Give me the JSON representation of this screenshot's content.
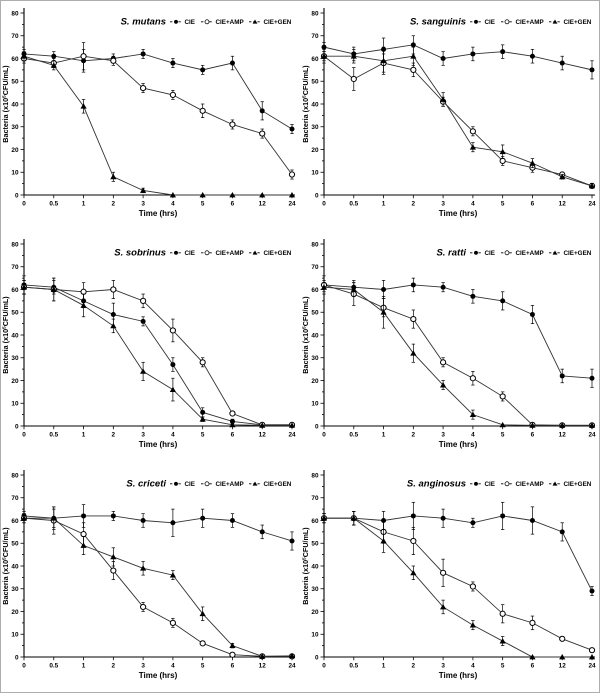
{
  "figure": {
    "background": "#ffffff",
    "border_color": "#adadad",
    "series_color": "#000000",
    "line_color": "#333333"
  },
  "chart_data": [
    {
      "type": "line",
      "title": "S. mutans",
      "xlabel": "Time (hrs)",
      "ylabel_prefix": "Bacteria (x10",
      "ylabel_exponent": "5",
      "ylabel_suffix": "CFU/mL)",
      "categories": [
        "0",
        "0.5",
        "1",
        "2",
        "3",
        "4",
        "5",
        "6",
        "12",
        "24"
      ],
      "ylim": [
        0,
        80
      ],
      "yticks": [
        0,
        10,
        20,
        30,
        40,
        50,
        60,
        70,
        80
      ],
      "grid": false,
      "error_bars": true,
      "legend_position": "top-right",
      "series": [
        {
          "name": "CIE",
          "marker": "filled-circle",
          "color": "#000000",
          "values": [
            62,
            61,
            59,
            60,
            62,
            58,
            55,
            58,
            37,
            29
          ],
          "errors": [
            2,
            2,
            5,
            2,
            2,
            2,
            2,
            3,
            4,
            2
          ]
        },
        {
          "name": "CIE+AMP",
          "marker": "open-circle",
          "color": "#000000",
          "values": [
            60,
            58,
            61,
            59,
            47,
            44,
            37,
            31,
            27,
            9
          ],
          "errors": [
            2,
            2,
            6,
            2,
            2,
            2,
            3,
            2,
            2,
            2
          ]
        },
        {
          "name": "CIE+GEN",
          "marker": "filled-triangle",
          "color": "#000000",
          "values": [
            61,
            57,
            39,
            8,
            2,
            0,
            0,
            0,
            0,
            0
          ],
          "errors": [
            2,
            2,
            3,
            2,
            1,
            0,
            0,
            0,
            0,
            0
          ]
        }
      ]
    },
    {
      "type": "line",
      "title": "S. sanguinis",
      "xlabel": "Time (hrs)",
      "ylabel_prefix": "Bacteria (x10",
      "ylabel_exponent": "5",
      "ylabel_suffix": "CFU/mL)",
      "categories": [
        "0",
        "0.5",
        "1",
        "2",
        "3",
        "4",
        "5",
        "6",
        "12",
        "24"
      ],
      "ylim": [
        0,
        80
      ],
      "yticks": [
        0,
        10,
        20,
        30,
        40,
        50,
        60,
        70,
        80
      ],
      "grid": false,
      "error_bars": true,
      "legend_position": "top-right",
      "series": [
        {
          "name": "CIE",
          "marker": "filled-circle",
          "color": "#000000",
          "values": [
            65,
            62,
            64,
            66,
            60,
            62,
            63,
            61,
            58,
            55
          ],
          "errors": [
            2,
            3,
            5,
            4,
            3,
            3,
            3,
            3,
            3,
            4
          ]
        },
        {
          "name": "CIE+AMP",
          "marker": "open-circle",
          "color": "#000000",
          "values": [
            61,
            51,
            58,
            55,
            41,
            28,
            15,
            12,
            9,
            4
          ],
          "errors": [
            3,
            5,
            4,
            3,
            2,
            2,
            2,
            2,
            1,
            1
          ]
        },
        {
          "name": "CIE+GEN",
          "marker": "filled-triangle",
          "color": "#000000",
          "values": [
            61,
            61,
            59,
            61,
            42,
            21,
            19,
            14,
            8,
            4
          ],
          "errors": [
            2,
            3,
            6,
            4,
            3,
            2,
            3,
            2,
            1,
            1
          ]
        }
      ]
    },
    {
      "type": "line",
      "title": "S. sobrinus",
      "xlabel": "Time (hrs)",
      "ylabel_prefix": "Bacteria (x10",
      "ylabel_exponent": "5",
      "ylabel_suffix": "CFU/mL)",
      "categories": [
        "0",
        "0.5",
        "1",
        "2",
        "3",
        "4",
        "5",
        "6",
        "12",
        "24"
      ],
      "ylim": [
        0,
        80
      ],
      "yticks": [
        0,
        10,
        20,
        30,
        40,
        50,
        60,
        70,
        80
      ],
      "grid": false,
      "error_bars": true,
      "legend_position": "top-right",
      "series": [
        {
          "name": "CIE",
          "marker": "filled-circle",
          "color": "#000000",
          "values": [
            62,
            61,
            55,
            49,
            46,
            27,
            6,
            2,
            0.5,
            0.5
          ],
          "errors": [
            4,
            3,
            3,
            5,
            2,
            3,
            2,
            1,
            0,
            0
          ]
        },
        {
          "name": "CIE+AMP",
          "marker": "open-circle",
          "color": "#000000",
          "values": [
            61,
            60,
            59,
            60,
            55,
            42,
            28,
            5.5,
            0.5,
            0.5
          ],
          "errors": [
            3,
            5,
            4,
            4,
            3,
            5,
            2,
            1,
            0,
            0
          ]
        },
        {
          "name": "CIE+GEN",
          "marker": "filled-triangle",
          "color": "#000000",
          "values": [
            61,
            60,
            53,
            44,
            24,
            16,
            3,
            0.5,
            0.3,
            0.3
          ],
          "errors": [
            3,
            5,
            5,
            3,
            4,
            5,
            1,
            0,
            0,
            0
          ]
        }
      ]
    },
    {
      "type": "line",
      "title": "S. ratti",
      "xlabel": "Time (hrs)",
      "ylabel_prefix": "Bacteria (x10",
      "ylabel_exponent": "5",
      "ylabel_suffix": "CFU/mL)",
      "categories": [
        "0",
        "0.5",
        "1",
        "2",
        "3",
        "4",
        "5",
        "6",
        "12",
        "24"
      ],
      "ylim": [
        0,
        80
      ],
      "yticks": [
        0,
        10,
        20,
        30,
        40,
        50,
        60,
        70,
        80
      ],
      "grid": false,
      "error_bars": true,
      "legend_position": "top-right",
      "series": [
        {
          "name": "CIE",
          "marker": "filled-circle",
          "color": "#000000",
          "values": [
            62,
            61,
            60,
            62,
            61,
            57,
            55,
            49,
            22,
            21
          ],
          "errors": [
            4,
            3,
            4,
            3,
            2,
            3,
            4,
            4,
            3,
            4
          ]
        },
        {
          "name": "CIE+AMP",
          "marker": "open-circle",
          "color": "#000000",
          "values": [
            62,
            58,
            52,
            47,
            28,
            21,
            13,
            0.5,
            0.3,
            0.3
          ],
          "errors": [
            2,
            5,
            4,
            4,
            2,
            3,
            2,
            0,
            0,
            0
          ]
        },
        {
          "name": "CIE+GEN",
          "marker": "filled-triangle",
          "color": "#000000",
          "values": [
            61,
            60,
            50,
            32,
            18,
            5,
            0.5,
            0.3,
            0.3,
            0.3
          ],
          "errors": [
            2,
            3,
            7,
            4,
            2,
            2,
            0,
            0,
            0,
            0
          ]
        }
      ]
    },
    {
      "type": "line",
      "title": "S. criceti",
      "xlabel": "Time (hrs)",
      "ylabel_prefix": "Bacteria (x10",
      "ylabel_exponent": "5",
      "ylabel_suffix": "CFU/mL)",
      "categories": [
        "0",
        "0.5",
        "1",
        "2",
        "3",
        "4",
        "5",
        "6",
        "12",
        "24"
      ],
      "ylim": [
        0,
        80
      ],
      "yticks": [
        0,
        10,
        20,
        30,
        40,
        50,
        60,
        70,
        80
      ],
      "grid": false,
      "error_bars": true,
      "legend_position": "top-right",
      "series": [
        {
          "name": "CIE",
          "marker": "filled-circle",
          "color": "#000000",
          "values": [
            62,
            61,
            62,
            62,
            60,
            59,
            61,
            60,
            55,
            51
          ],
          "errors": [
            2,
            5,
            5,
            2,
            3,
            6,
            4,
            3,
            3,
            4
          ]
        },
        {
          "name": "CIE+AMP",
          "marker": "open-circle",
          "color": "#000000",
          "values": [
            61,
            60,
            54,
            38,
            22,
            15,
            6,
            1,
            0.3,
            0.3
          ],
          "errors": [
            2,
            6,
            5,
            4,
            2,
            2,
            1,
            1,
            0,
            0
          ]
        },
        {
          "name": "CIE+GEN",
          "marker": "filled-triangle",
          "color": "#000000",
          "values": [
            61,
            61,
            49,
            44,
            39,
            36,
            19,
            5,
            0.3,
            0.5
          ],
          "errors": [
            2,
            4,
            4,
            4,
            3,
            2,
            3,
            1,
            0,
            0
          ]
        }
      ]
    },
    {
      "type": "line",
      "title": "S. anginosus",
      "xlabel": "Time (hrs)",
      "ylabel_prefix": "Bacteria (x10",
      "ylabel_exponent": "5",
      "ylabel_suffix": "CFU/mL)",
      "categories": [
        "0",
        "0.5",
        "1",
        "2",
        "3",
        "4",
        "5",
        "6",
        "12",
        "24"
      ],
      "ylim": [
        0,
        80
      ],
      "yticks": [
        0,
        10,
        20,
        30,
        40,
        50,
        60,
        70,
        80
      ],
      "grid": false,
      "error_bars": true,
      "legend_position": "top-right",
      "series": [
        {
          "name": "CIE",
          "marker": "filled-circle",
          "color": "#000000",
          "values": [
            61,
            61,
            60,
            62,
            61,
            59,
            62,
            60,
            55,
            29
          ],
          "errors": [
            2,
            3,
            4,
            6,
            4,
            2,
            6,
            6,
            4,
            2
          ]
        },
        {
          "name": "CIE+AMP",
          "marker": "open-circle",
          "color": "#000000",
          "values": [
            61,
            61,
            55,
            51,
            37,
            31,
            19,
            15,
            8,
            3
          ],
          "errors": [
            2,
            3,
            5,
            6,
            6,
            2,
            4,
            3,
            1,
            1
          ]
        },
        {
          "name": "CIE+GEN",
          "marker": "filled-triangle",
          "color": "#000000",
          "values": [
            61,
            61,
            51,
            37,
            22,
            14,
            7,
            0,
            0,
            0
          ],
          "errors": [
            2,
            3,
            5,
            3,
            3,
            2,
            2,
            0,
            0,
            0
          ]
        }
      ]
    }
  ]
}
